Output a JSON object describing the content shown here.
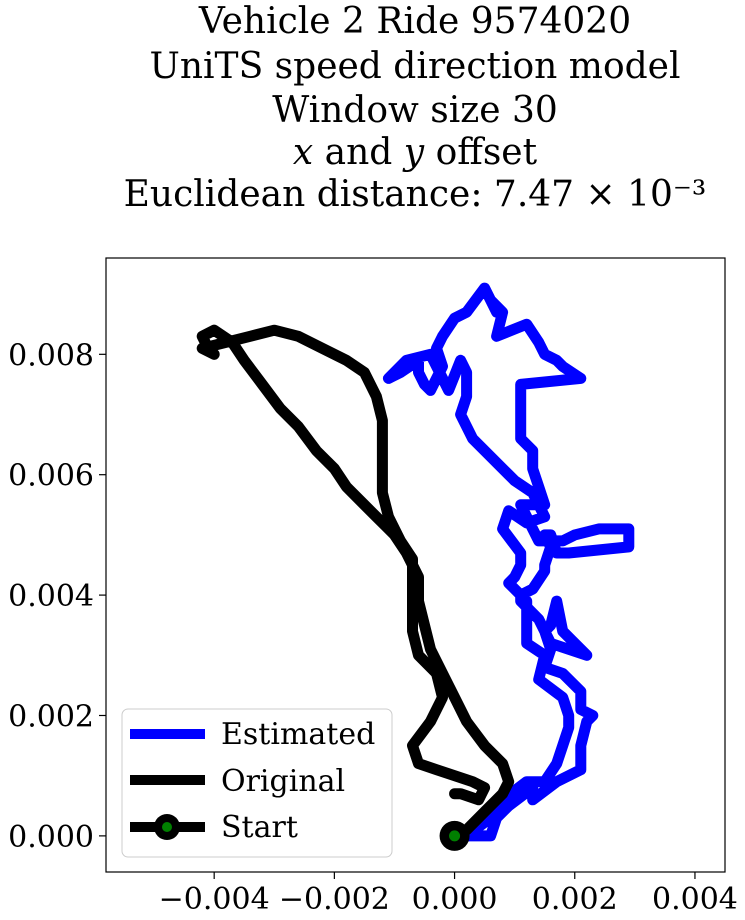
{
  "chart_data": {
    "type": "line",
    "title_lines": [
      "Vehicle 2 Ride 9574020",
      "UniTS speed direction model",
      "Window size 30",
      "𝑥 and 𝑦 offset",
      "Euclidean distance: 7.47 × 10⁻³"
    ],
    "xlabel": "",
    "ylabel": "",
    "xlim": [
      -0.0058,
      0.0045
    ],
    "ylim": [
      -0.0006,
      0.0096
    ],
    "x_ticks": [
      -0.004,
      -0.002,
      0.0,
      0.002,
      0.004
    ],
    "x_tick_labels": [
      "−0.004",
      "−0.002",
      "0.000",
      "0.002",
      "0.004"
    ],
    "y_ticks": [
      0.0,
      0.002,
      0.004,
      0.006,
      0.008
    ],
    "y_tick_labels": [
      "0.000",
      "0.002",
      "0.004",
      "0.006",
      "0.008"
    ],
    "grid": false,
    "legend_position": "lower-left",
    "series": [
      {
        "name": "Estimated",
        "color": "#0000ff",
        "points": [
          [
            0.0,
            0.0
          ],
          [
            0.0006,
            0.0
          ],
          [
            0.0007,
            0.0003
          ],
          [
            0.0009,
            0.0005
          ],
          [
            0.0013,
            0.0008
          ],
          [
            0.0013,
            0.0006
          ],
          [
            0.0017,
            0.0009
          ],
          [
            0.0021,
            0.0011
          ],
          [
            0.0021,
            0.0015
          ],
          [
            0.0022,
            0.0019
          ],
          [
            0.0023,
            0.002
          ],
          [
            0.0021,
            0.0021
          ],
          [
            0.0021,
            0.0024
          ],
          [
            0.0018,
            0.0027
          ],
          [
            0.0015,
            0.0028
          ],
          [
            0.0016,
            0.0031
          ],
          [
            0.0015,
            0.0034
          ],
          [
            0.0016,
            0.0035
          ],
          [
            0.0017,
            0.0039
          ],
          [
            0.0018,
            0.0034
          ],
          [
            0.0022,
            0.003
          ],
          [
            0.0016,
            0.0032
          ],
          [
            0.0014,
            0.0036
          ],
          [
            0.0012,
            0.0038
          ],
          [
            0.0011,
            0.0039
          ],
          [
            0.0011,
            0.004
          ],
          [
            0.0013,
            0.0041
          ],
          [
            0.0015,
            0.0044
          ],
          [
            0.0015,
            0.0045
          ],
          [
            0.0016,
            0.0048
          ],
          [
            0.0015,
            0.005
          ],
          [
            0.0016,
            0.005
          ],
          [
            0.0017,
            0.0047
          ],
          [
            0.0019,
            0.0047
          ],
          [
            0.0029,
            0.0048
          ],
          [
            0.0029,
            0.0051
          ],
          [
            0.0024,
            0.0051
          ],
          [
            0.002,
            0.005
          ],
          [
            0.0018,
            0.0049
          ],
          [
            0.0014,
            0.0049
          ],
          [
            0.0013,
            0.0051
          ],
          [
            0.0011,
            0.0055
          ],
          [
            0.0015,
            0.0055
          ],
          [
            0.0014,
            0.0058
          ],
          [
            0.0013,
            0.0061
          ],
          [
            0.0013,
            0.0064
          ],
          [
            0.0011,
            0.0066
          ],
          [
            0.0011,
            0.0069
          ],
          [
            0.0011,
            0.0073
          ],
          [
            0.0011,
            0.0075
          ],
          [
            0.0021,
            0.0076
          ],
          [
            0.0018,
            0.0078
          ],
          [
            0.0017,
            0.0079
          ],
          [
            0.0015,
            0.008
          ],
          [
            0.0014,
            0.0082
          ],
          [
            0.0012,
            0.0085
          ],
          [
            0.0007,
            0.0083
          ],
          [
            0.0008,
            0.0087
          ],
          [
            0.0006,
            0.0089
          ],
          [
            0.0007,
            0.0087
          ],
          [
            0.0005,
            0.0091
          ],
          [
            0.0002,
            0.0087
          ],
          [
            0.0,
            0.0086
          ],
          [
            -0.0002,
            0.0083
          ],
          [
            -0.0003,
            0.0081
          ],
          [
            -0.0002,
            0.0078
          ],
          [
            -0.0003,
            0.0076
          ],
          [
            -0.0004,
            0.0074
          ],
          [
            -0.0005,
            0.0075
          ],
          [
            -0.0006,
            0.0077
          ],
          [
            -0.0006,
            0.0079
          ],
          [
            -0.0009,
            0.0077
          ],
          [
            -0.0011,
            0.0076
          ],
          [
            -0.0008,
            0.0079
          ],
          [
            -0.0004,
            0.008
          ],
          [
            -0.0001,
            0.0074
          ],
          [
            0.0001,
            0.0079
          ],
          [
            0.0002,
            0.0077
          ],
          [
            0.0002,
            0.0073
          ],
          [
            0.0001,
            0.007
          ],
          [
            0.0003,
            0.0066
          ],
          [
            0.0005,
            0.0064
          ],
          [
            0.0006,
            0.0063
          ],
          [
            0.0009,
            0.006
          ],
          [
            0.001,
            0.0059
          ],
          [
            0.0013,
            0.0057
          ],
          [
            0.0015,
            0.0053
          ],
          [
            0.0012,
            0.0052
          ],
          [
            0.0009,
            0.0054
          ],
          [
            0.0008,
            0.0051
          ],
          [
            0.0011,
            0.0047
          ],
          [
            0.0011,
            0.0045
          ],
          [
            0.001,
            0.0043
          ],
          [
            0.0009,
            0.0042
          ],
          [
            0.0012,
            0.0039
          ],
          [
            0.0012,
            0.0034
          ],
          [
            0.0012,
            0.0032
          ],
          [
            0.0015,
            0.003
          ],
          [
            0.0014,
            0.0026
          ],
          [
            0.0018,
            0.0023
          ],
          [
            0.0019,
            0.002
          ],
          [
            0.0019,
            0.0018
          ],
          [
            0.0018,
            0.0015
          ],
          [
            0.0017,
            0.0012
          ],
          [
            0.0015,
            0.0009
          ],
          [
            0.0012,
            0.0009
          ],
          [
            0.0008,
            0.0006
          ],
          [
            0.0006,
            0.0003
          ],
          [
            0.0002,
            0.0
          ],
          [
            0.0,
            0.0
          ]
        ]
      },
      {
        "name": "Original",
        "color": "#000000",
        "points": [
          [
            0.0,
            0.0
          ],
          [
            0.0002,
            0.0001
          ],
          [
            0.0005,
            0.0004
          ],
          [
            0.0008,
            0.0007
          ],
          [
            0.0009,
            0.0009
          ],
          [
            0.0008,
            0.0012
          ],
          [
            0.0005,
            0.0015
          ],
          [
            0.0002,
            0.0019
          ],
          [
            0.0,
            0.0023
          ],
          [
            -0.0002,
            0.0027
          ],
          [
            -0.0004,
            0.0031
          ],
          [
            -0.0005,
            0.0035
          ],
          [
            -0.0006,
            0.0039
          ],
          [
            -0.0006,
            0.0043
          ],
          [
            -0.0008,
            0.0047
          ],
          [
            -0.001,
            0.005
          ],
          [
            -0.0013,
            0.0053
          ],
          [
            -0.0015,
            0.0055
          ],
          [
            -0.0018,
            0.0058
          ],
          [
            -0.002,
            0.0061
          ],
          [
            -0.0023,
            0.0064
          ],
          [
            -0.0026,
            0.0068
          ],
          [
            -0.0029,
            0.0071
          ],
          [
            -0.0032,
            0.0075
          ],
          [
            -0.0035,
            0.0079
          ],
          [
            -0.0037,
            0.0082
          ],
          [
            -0.004,
            0.0084
          ],
          [
            -0.0042,
            0.0083
          ],
          [
            -0.0041,
            0.0081
          ],
          [
            -0.004,
            0.008
          ],
          [
            -0.0042,
            0.0081
          ],
          [
            -0.0038,
            0.0082
          ],
          [
            -0.0034,
            0.0083
          ],
          [
            -0.003,
            0.0084
          ],
          [
            -0.0026,
            0.0083
          ],
          [
            -0.0022,
            0.0081
          ],
          [
            -0.0018,
            0.0079
          ],
          [
            -0.0015,
            0.0077
          ],
          [
            -0.0013,
            0.0073
          ],
          [
            -0.0012,
            0.0069
          ],
          [
            -0.0012,
            0.0065
          ],
          [
            -0.0012,
            0.0061
          ],
          [
            -0.0012,
            0.0057
          ],
          [
            -0.0011,
            0.0053
          ],
          [
            -0.0009,
            0.0049
          ],
          [
            -0.0007,
            0.0046
          ],
          [
            -0.0007,
            0.0042
          ],
          [
            -0.0007,
            0.0038
          ],
          [
            -0.0007,
            0.0034
          ],
          [
            -0.0006,
            0.003
          ],
          [
            -0.0003,
            0.0027
          ],
          [
            -0.0002,
            0.0023
          ],
          [
            -0.0004,
            0.0019
          ],
          [
            -0.0007,
            0.0015
          ],
          [
            -0.0006,
            0.0012
          ],
          [
            -0.0003,
            0.0011
          ],
          [
            0.0,
            0.001
          ],
          [
            0.0003,
            0.0009
          ],
          [
            0.0005,
            0.0008
          ],
          [
            0.0004,
            0.0006
          ],
          [
            0.0001,
            0.0007
          ],
          [
            0.0,
            0.0007
          ]
        ]
      }
    ],
    "start": {
      "x": 0.0,
      "y": 0.0,
      "outer_color": "#000000",
      "inner_color": "#008000"
    },
    "legend": [
      {
        "label": "Estimated",
        "color": "#0000ff",
        "marker": "line"
      },
      {
        "label": "Original",
        "color": "#000000",
        "marker": "line"
      },
      {
        "label": "Start",
        "color": "#000000",
        "marker": "start-dot"
      }
    ]
  }
}
